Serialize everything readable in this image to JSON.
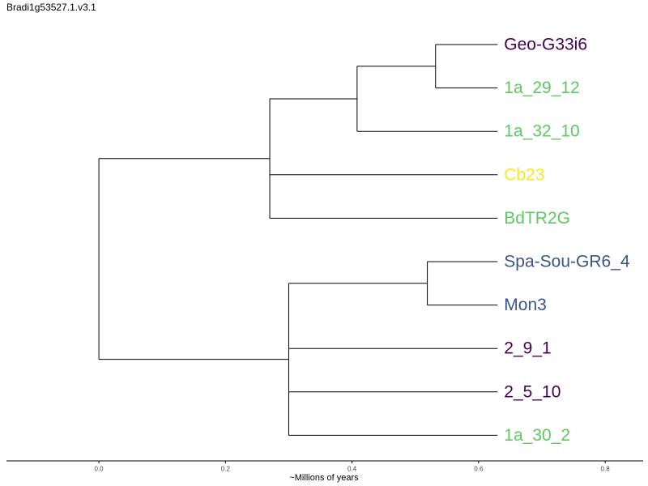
{
  "title": "Bradi1g53527.1.v3.1",
  "chart_data": {
    "type": "dendrogram",
    "xlabel": "~Millions of years",
    "xlim": [
      -0.146,
      0.86
    ],
    "ticks": [
      {
        "value": 0.0,
        "label": "0.0"
      },
      {
        "value": 0.2,
        "label": "0.2"
      },
      {
        "value": 0.4,
        "label": "0.4"
      },
      {
        "value": 0.6,
        "label": "0.6"
      },
      {
        "value": 0.8,
        "label": "0.8"
      }
    ],
    "tips": [
      {
        "name": "Geo-G33i6",
        "color": "#440154"
      },
      {
        "name": "1a_29_12",
        "color": "#5ec962"
      },
      {
        "name": "1a_32_10",
        "color": "#5ec962"
      },
      {
        "name": "Cb23",
        "color": "#fde725"
      },
      {
        "name": "BdTR2G",
        "color": "#5ec962"
      },
      {
        "name": "Spa-Sou-GR6_4",
        "color": "#3b528b"
      },
      {
        "name": "Mon3",
        "color": "#3b528b"
      },
      {
        "name": "2_9_1",
        "color": "#440154"
      },
      {
        "name": "2_5_10",
        "color": "#440154"
      },
      {
        "name": "1a_30_2",
        "color": "#5ec962"
      }
    ],
    "tip_age": 0.63,
    "nodes": [
      {
        "id": "root",
        "age": 0.0,
        "children": [
          "A",
          "B"
        ]
      },
      {
        "id": "A",
        "age": 0.27,
        "children": [
          "A1",
          "tip:Cb23",
          "tip:BdTR2G"
        ]
      },
      {
        "id": "A1",
        "age": 0.408,
        "children": [
          "A2",
          "tip:1a_32_10"
        ]
      },
      {
        "id": "A2",
        "age": 0.532,
        "children": [
          "tip:Geo-G33i6",
          "tip:1a_29_12"
        ]
      },
      {
        "id": "B",
        "age": 0.3,
        "children": [
          "B1",
          "tip:2_9_1",
          "tip:2_5_10",
          "tip:1a_30_2"
        ]
      },
      {
        "id": "B1",
        "age": 0.519,
        "children": [
          "tip:Spa-Sou-GR6_4",
          "tip:Mon3"
        ]
      }
    ]
  }
}
